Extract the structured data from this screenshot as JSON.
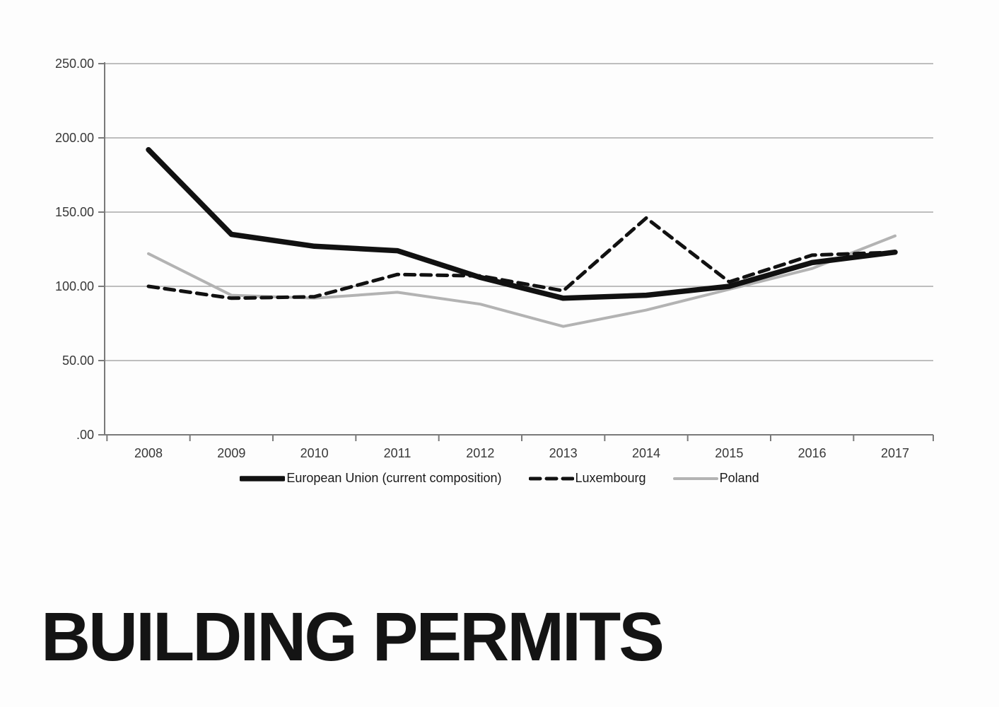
{
  "title": {
    "text": "BUILDING PERMITS"
  },
  "chart_data": {
    "type": "line",
    "categories": [
      "2008",
      "2009",
      "2010",
      "2011",
      "2012",
      "2013",
      "2014",
      "2015",
      "2016",
      "2017"
    ],
    "series": [
      {
        "name": "European Union (current composition)",
        "style": "solid-thick",
        "color": "#111111",
        "values": [
          192,
          135,
          127,
          124,
          106,
          92,
          94,
          100,
          116,
          123
        ]
      },
      {
        "name": "Luxembourg",
        "style": "dashed",
        "color": "#111111",
        "values": [
          100,
          92,
          93,
          108,
          107,
          97,
          146,
          103,
          121,
          123
        ]
      },
      {
        "name": "Poland",
        "style": "solid",
        "color": "#b3b3b3",
        "values": [
          122,
          94,
          92,
          96,
          88,
          73,
          84,
          98,
          112,
          134
        ]
      }
    ],
    "ylim": [
      0,
      250
    ],
    "ytick_interval": 50,
    "ytick_labels": [
      "250.00",
      "200.00",
      "150.00",
      "100.00",
      "50.00",
      ".00"
    ],
    "grid": "horizontal",
    "legend_position": "bottom",
    "colors": {
      "grid": "#a9a9a9",
      "axis": "#7a7a7a",
      "tick_label": "#383838",
      "legend_text": "#1a1a1a"
    }
  }
}
